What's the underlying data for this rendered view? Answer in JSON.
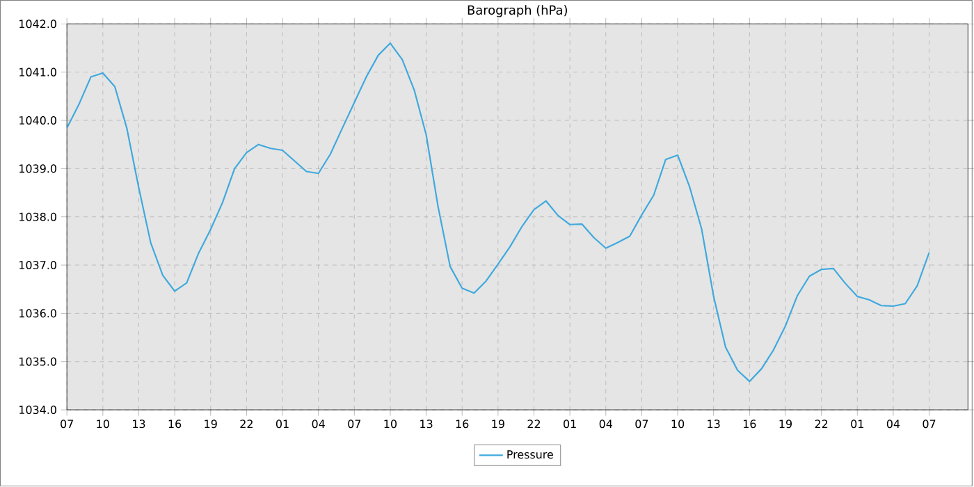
{
  "chart_data": {
    "type": "line",
    "title": "Barograph (hPa)",
    "categories": [
      "07",
      null,
      null,
      "10",
      null,
      null,
      "13",
      null,
      null,
      "16",
      null,
      null,
      "19",
      null,
      null,
      "22",
      null,
      null,
      "01",
      null,
      null,
      "04",
      null,
      null,
      "07",
      null,
      null,
      "10",
      null,
      null,
      "13",
      null,
      null,
      "16",
      null,
      null,
      "19",
      null,
      null,
      "22",
      null,
      null,
      "01",
      null,
      null,
      "04",
      null,
      null,
      "07",
      null,
      null,
      "10",
      null,
      null,
      "13",
      null,
      null,
      "16",
      null,
      null,
      "19",
      null,
      null,
      "22",
      null,
      null,
      "01",
      null,
      null,
      "04",
      null,
      null,
      "07"
    ],
    "series": [
      {
        "name": "Pressure",
        "color": "#3fa9dd",
        "values": [
          1039.84,
          1040.33,
          1040.9,
          1040.98,
          1040.7,
          1039.84,
          1038.6,
          1037.46,
          1036.79,
          1036.46,
          1036.63,
          1037.25,
          1037.74,
          1038.3,
          1039.0,
          1039.33,
          1039.5,
          1039.42,
          1039.38,
          1039.16,
          1038.94,
          1038.9,
          1039.3,
          1039.84,
          1040.37,
          1040.9,
          1041.35,
          1041.6,
          1041.26,
          1040.63,
          1039.7,
          1038.2,
          1036.97,
          1036.52,
          1036.42,
          1036.67,
          1037.02,
          1037.38,
          1037.8,
          1038.15,
          1038.33,
          1038.03,
          1037.84,
          1037.85,
          1037.57,
          1037.35,
          1037.47,
          1037.6,
          1038.04,
          1038.45,
          1039.19,
          1039.28,
          1038.62,
          1037.75,
          1036.35,
          1035.3,
          1034.82,
          1034.59,
          1034.85,
          1035.24,
          1035.74,
          1036.37,
          1036.77,
          1036.91,
          1036.93,
          1036.62,
          1036.35,
          1036.28,
          1036.16,
          1036.15,
          1036.2,
          1036.57,
          1037.26
        ]
      }
    ],
    "ylim": [
      1034,
      1042
    ],
    "yticks": [
      {
        "value": 1034,
        "label": "1034.0"
      },
      {
        "value": 1035,
        "label": "1035.0"
      },
      {
        "value": 1036,
        "label": "1036.0"
      },
      {
        "value": 1037,
        "label": "1037.0"
      },
      {
        "value": 1038,
        "label": "1038.0"
      },
      {
        "value": 1039,
        "label": "1039.0"
      },
      {
        "value": 1040,
        "label": "1040.0"
      },
      {
        "value": 1041,
        "label": "1041.0"
      },
      {
        "value": 1042,
        "label": "1042.0"
      }
    ],
    "grid": true,
    "legend": "bottom"
  }
}
